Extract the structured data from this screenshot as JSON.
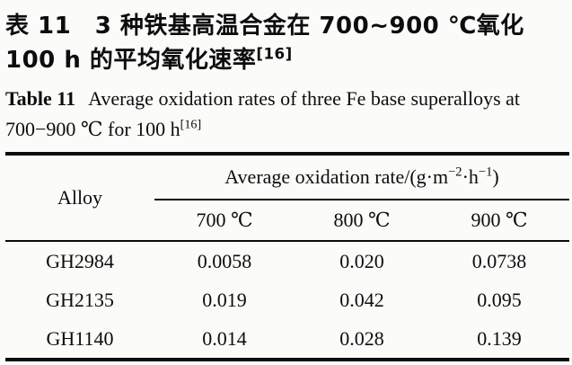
{
  "captions": {
    "zh_label": "表 11",
    "zh_text": "3 种铁基高温合金在 700~900 ℃氧化 100 h 的平均氧化速率",
    "zh_ref": "[16]",
    "en_label": "Table 11",
    "en_text": "Average oxidation rates of three Fe base superalloys at 700−900 ℃ for 100 h",
    "en_ref": "[16]"
  },
  "table": {
    "alloy_header": "Alloy",
    "unit_header": {
      "prefix": "Average oxidation rate/(g·m",
      "sup1": "−2",
      "mid": "·h",
      "sup2": "−1",
      "suffix": ")"
    },
    "temp_headers": [
      "700 ℃",
      "800 ℃",
      "900 ℃"
    ],
    "rows": [
      {
        "alloy": "GH2984",
        "values": [
          "0.0058",
          "0.020",
          "0.0738"
        ]
      },
      {
        "alloy": "GH2135",
        "values": [
          "0.019",
          "0.042",
          "0.095"
        ]
      },
      {
        "alloy": "GH1140",
        "values": [
          "0.014",
          "0.028",
          "0.139"
        ]
      }
    ]
  },
  "chart_data": {
    "type": "table",
    "title": "Average oxidation rates of three Fe base superalloys at 700−900 ℃ for 100 h",
    "columns": [
      "Alloy",
      "700 ℃",
      "800 ℃",
      "900 ℃"
    ],
    "unit": "g·m−2·h−1",
    "rows": [
      [
        "GH2984",
        0.0058,
        0.02,
        0.0738
      ],
      [
        "GH2135",
        0.019,
        0.042,
        0.095
      ],
      [
        "GH1140",
        0.014,
        0.028,
        0.139
      ]
    ],
    "reference": "[16]"
  },
  "colors": {
    "paper_background": "#fbfbf9",
    "text": "#0d0d0d",
    "rule": "#0b0b0b"
  }
}
